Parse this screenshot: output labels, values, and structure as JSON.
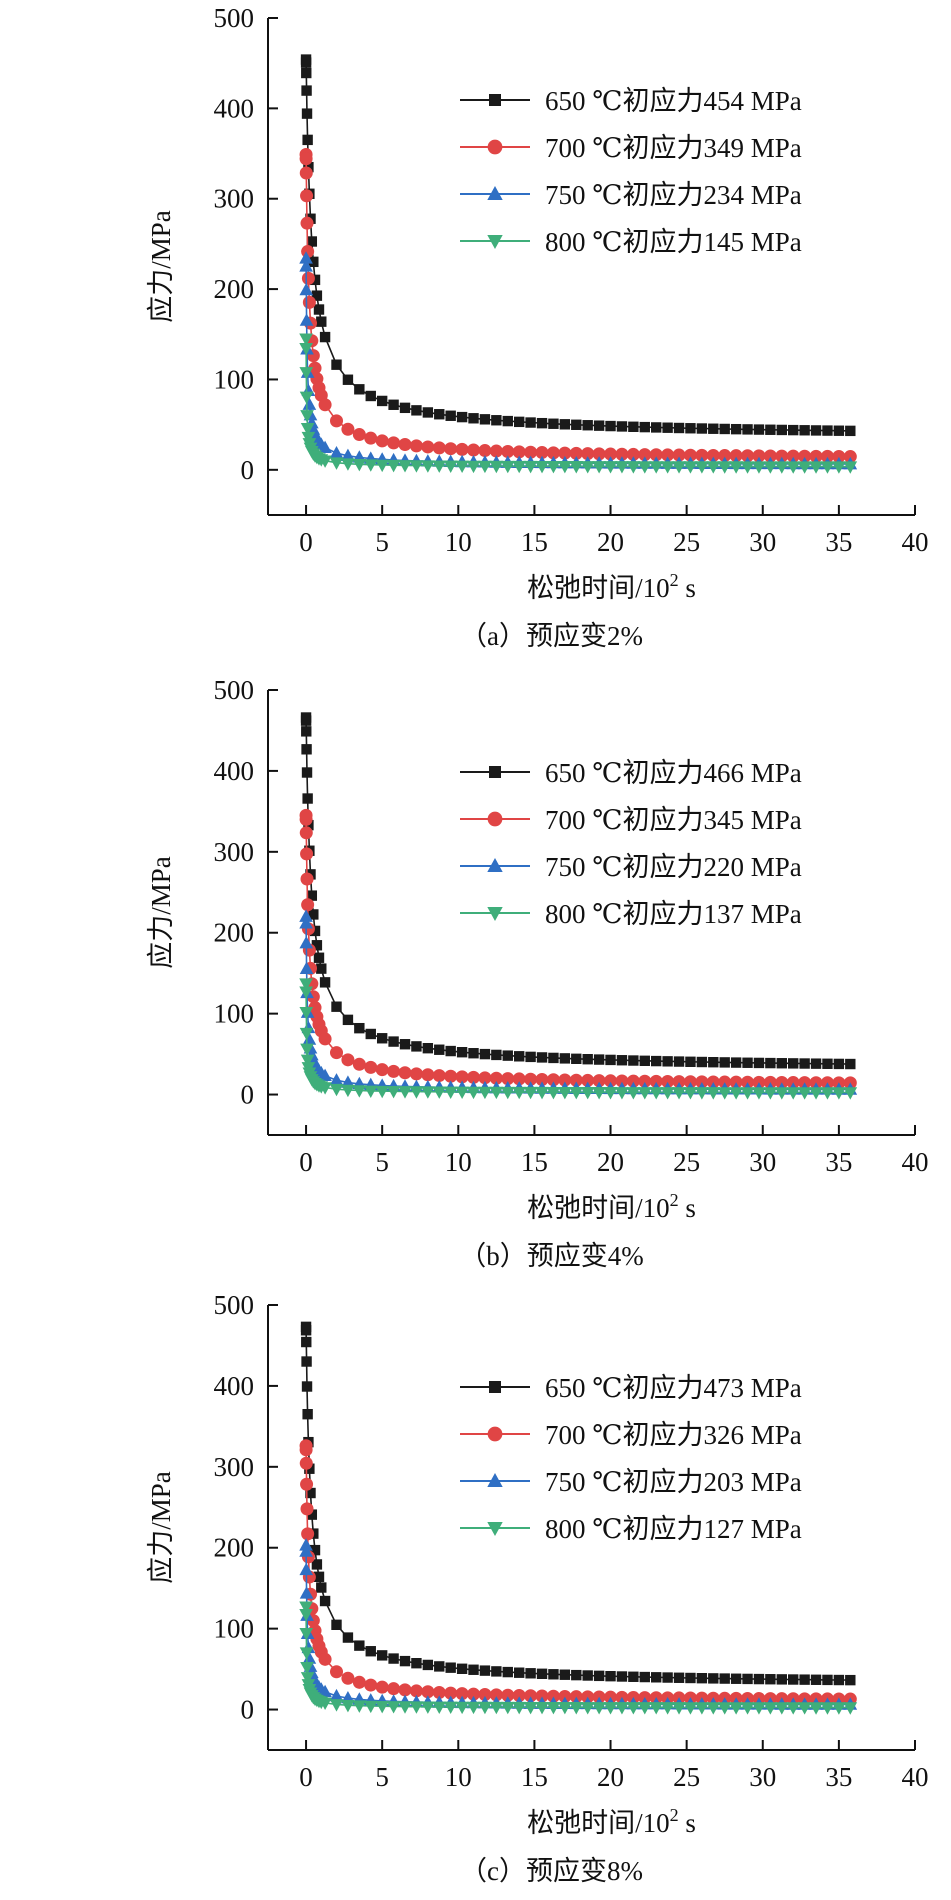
{
  "figure": {
    "panels": [
      {
        "caption": "（a）预应变2%",
        "legend": [
          "650 ℃初应力454 MPa",
          "700 ℃初应力349 MPa",
          "750 ℃初应力234 MPa",
          "800 ℃初应力145 MPa"
        ]
      },
      {
        "caption": "（b）预应变4%",
        "legend": [
          "650 ℃初应力466 MPa",
          "700 ℃初应力345 MPa",
          "750 ℃初应力220 MPa",
          "800 ℃初应力137 MPa"
        ]
      },
      {
        "caption": "（c）预应变8%",
        "legend": [
          "650 ℃初应力473 MPa",
          "700 ℃初应力326 MPa",
          "750 ℃初应力203 MPa",
          "800 ℃初应力127 MPa"
        ]
      }
    ]
  },
  "chart_data": [
    {
      "type": "line",
      "title": "（a）预应变2%",
      "xlabel": "松弛时间/10² s",
      "ylabel": "应力/MPa",
      "xlim": [
        -2.5,
        40
      ],
      "ylim": [
        -50,
        500
      ],
      "xticks": [
        0,
        5,
        10,
        15,
        20,
        25,
        30,
        35,
        40
      ],
      "yticks": [
        0,
        100,
        200,
        300,
        400,
        500
      ],
      "legend_position": "top-right",
      "series": [
        {
          "name": "650 ℃初应力454 MPa",
          "color": "#1a1a1a",
          "marker": "square",
          "initial": 454,
          "end": 34,
          "tau": 0.3
        },
        {
          "name": "700 ℃初应力349 MPa",
          "color": "#e04545",
          "marker": "circle",
          "initial": 349,
          "end": 10,
          "tau": 0.17
        },
        {
          "name": "750 ℃初应力234 MPa",
          "color": "#2f6fc4",
          "marker": "triangle-up",
          "initial": 234,
          "end": 5,
          "tau": 0.06
        },
        {
          "name": "800 ℃初应力145 MPa",
          "color": "#3fae7a",
          "marker": "triangle-down",
          "initial": 145,
          "end": 3,
          "tau": 0.03
        }
      ]
    },
    {
      "type": "line",
      "title": "（b）预应变4%",
      "xlabel": "松弛时间/10² s",
      "ylabel": "应力/MPa",
      "xlim": [
        -2.5,
        40
      ],
      "ylim": [
        -50,
        500
      ],
      "xticks": [
        0,
        5,
        10,
        15,
        20,
        25,
        30,
        35,
        40
      ],
      "yticks": [
        0,
        100,
        200,
        300,
        400,
        500
      ],
      "legend_position": "top-right",
      "series": [
        {
          "name": "650 ℃初应力466 MPa",
          "color": "#1a1a1a",
          "marker": "square",
          "initial": 466,
          "end": 29,
          "tau": 0.27
        },
        {
          "name": "700 ℃初应力345 MPa",
          "color": "#e04545",
          "marker": "circle",
          "initial": 345,
          "end": 10,
          "tau": 0.16
        },
        {
          "name": "750 ℃初应力220 MPa",
          "color": "#2f6fc4",
          "marker": "triangle-up",
          "initial": 220,
          "end": 5,
          "tau": 0.06
        },
        {
          "name": "800 ℃初应力137 MPa",
          "color": "#3fae7a",
          "marker": "triangle-down",
          "initial": 137,
          "end": 2,
          "tau": 0.03
        }
      ]
    },
    {
      "type": "line",
      "title": "（c）预应变8%",
      "xlabel": "松弛时间/10² s",
      "ylabel": "应力/MPa",
      "xlim": [
        -2.5,
        40
      ],
      "ylim": [
        -50,
        500
      ],
      "xticks": [
        0,
        5,
        10,
        15,
        20,
        25,
        30,
        35,
        40
      ],
      "yticks": [
        0,
        100,
        200,
        300,
        400,
        500
      ],
      "legend_position": "top-right",
      "series": [
        {
          "name": "650 ℃初应力473 MPa",
          "color": "#1a1a1a",
          "marker": "square",
          "initial": 473,
          "end": 28,
          "tau": 0.25
        },
        {
          "name": "700 ℃初应力326 MPa",
          "color": "#e04545",
          "marker": "circle",
          "initial": 326,
          "end": 9,
          "tau": 0.15
        },
        {
          "name": "750 ℃初应力203 MPa",
          "color": "#2f6fc4",
          "marker": "triangle-up",
          "initial": 203,
          "end": 5,
          "tau": 0.06
        },
        {
          "name": "800 ℃初应力127 MPa",
          "color": "#3fae7a",
          "marker": "triangle-down",
          "initial": 127,
          "end": 2,
          "tau": 0.03
        }
      ]
    }
  ]
}
